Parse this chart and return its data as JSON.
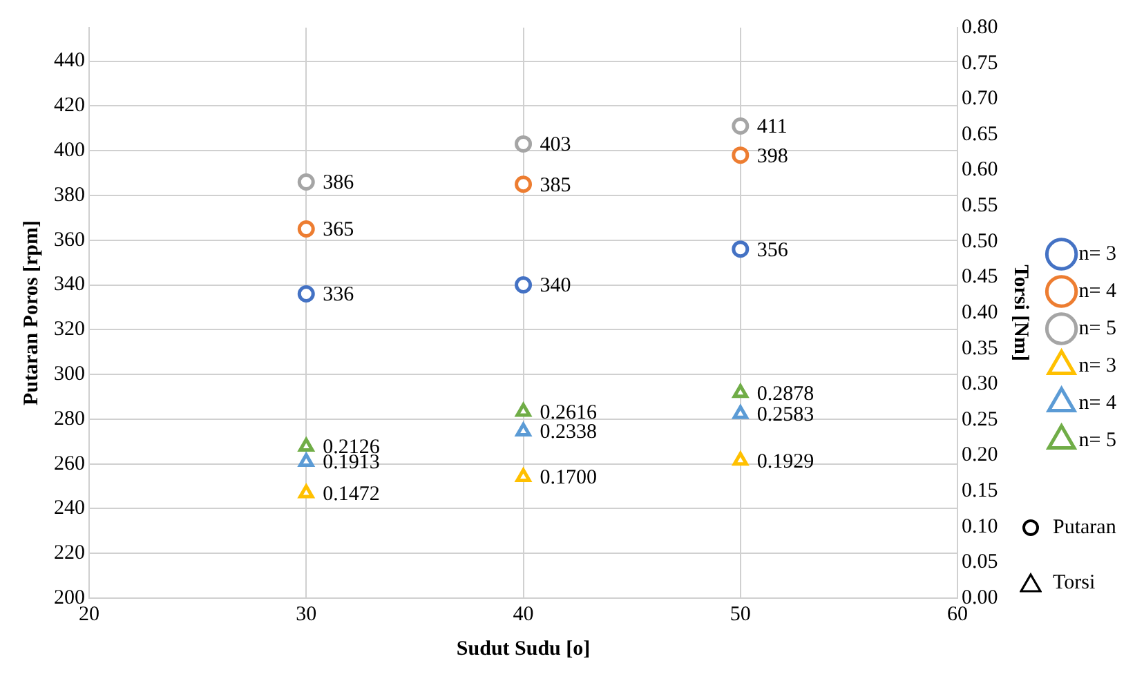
{
  "chart_data": {
    "type": "scatter",
    "xlabel": "Sudut Sudu [o]",
    "ylabel": "Putaran Poros [rpm]",
    "y2label": "Torsi [Nm]",
    "xlim": [
      20,
      60
    ],
    "xticks": [
      20,
      30,
      40,
      50,
      60
    ],
    "ylim": [
      200,
      455
    ],
    "yticks": [
      200,
      220,
      240,
      260,
      280,
      300,
      320,
      340,
      360,
      380,
      400,
      420,
      440
    ],
    "y2lim": [
      0,
      0.8
    ],
    "y2ticks": [
      {
        "value": 0,
        "label": "0.00"
      },
      {
        "value": 0.05,
        "label": "0.05"
      },
      {
        "value": 0.1,
        "label": "0.10"
      },
      {
        "value": 0.15,
        "label": "0.15"
      },
      {
        "value": 0.2,
        "label": "0.20"
      },
      {
        "value": 0.25,
        "label": "0.25"
      },
      {
        "value": 0.3,
        "label": "0.30"
      },
      {
        "value": 0.35,
        "label": "0.35"
      },
      {
        "value": 0.4,
        "label": "0.40"
      },
      {
        "value": 0.45,
        "label": "0.45"
      },
      {
        "value": 0.5,
        "label": "0.50"
      },
      {
        "value": 0.55,
        "label": "0.55"
      },
      {
        "value": 0.6,
        "label": "0.60"
      },
      {
        "value": 0.65,
        "label": "0.65"
      },
      {
        "value": 0.7,
        "label": "0.70"
      },
      {
        "value": 0.75,
        "label": "0.75"
      },
      {
        "value": 0.8,
        "label": "0.80"
      }
    ],
    "grid": true,
    "legend": "right",
    "annotations": [
      "Putaran",
      "Torsi"
    ],
    "x": [
      30,
      40,
      50
    ],
    "series": [
      {
        "name": "n= 3",
        "color": "#4472c4",
        "marker": "circle",
        "values": [
          336,
          340,
          356
        ],
        "value_labels": [
          "336",
          "340",
          "356"
        ]
      },
      {
        "name": "n= 4",
        "color": "#ed7d31",
        "marker": "circle",
        "values": [
          365,
          385,
          398
        ],
        "value_labels": [
          "365",
          "385",
          "398"
        ]
      },
      {
        "name": "n= 5",
        "color": "#a5a5a5",
        "marker": "circle",
        "values": [
          386,
          403,
          411
        ],
        "value_labels": [
          "386",
          "403",
          "411"
        ]
      },
      {
        "name": "n= 3",
        "color": "#ffc000",
        "marker": "triangle",
        "axis": "y2",
        "values": [
          0.1472,
          0.17,
          0.1929
        ],
        "value_labels": [
          "0.1472",
          "0.1700",
          "0.1929"
        ]
      },
      {
        "name": "n= 4",
        "color": "#5b9bd5",
        "marker": "triangle",
        "axis": "y2",
        "values": [
          0.1913,
          0.2338,
          0.2583
        ],
        "value_labels": [
          "0.1913",
          "0.2338",
          "0.2583"
        ]
      },
      {
        "name": "n= 5",
        "color": "#70ad47",
        "marker": "triangle",
        "axis": "y2",
        "values": [
          0.2126,
          0.2616,
          0.2878
        ],
        "value_labels": [
          "0.2126",
          "0.2616",
          "0.2878"
        ]
      }
    ]
  }
}
